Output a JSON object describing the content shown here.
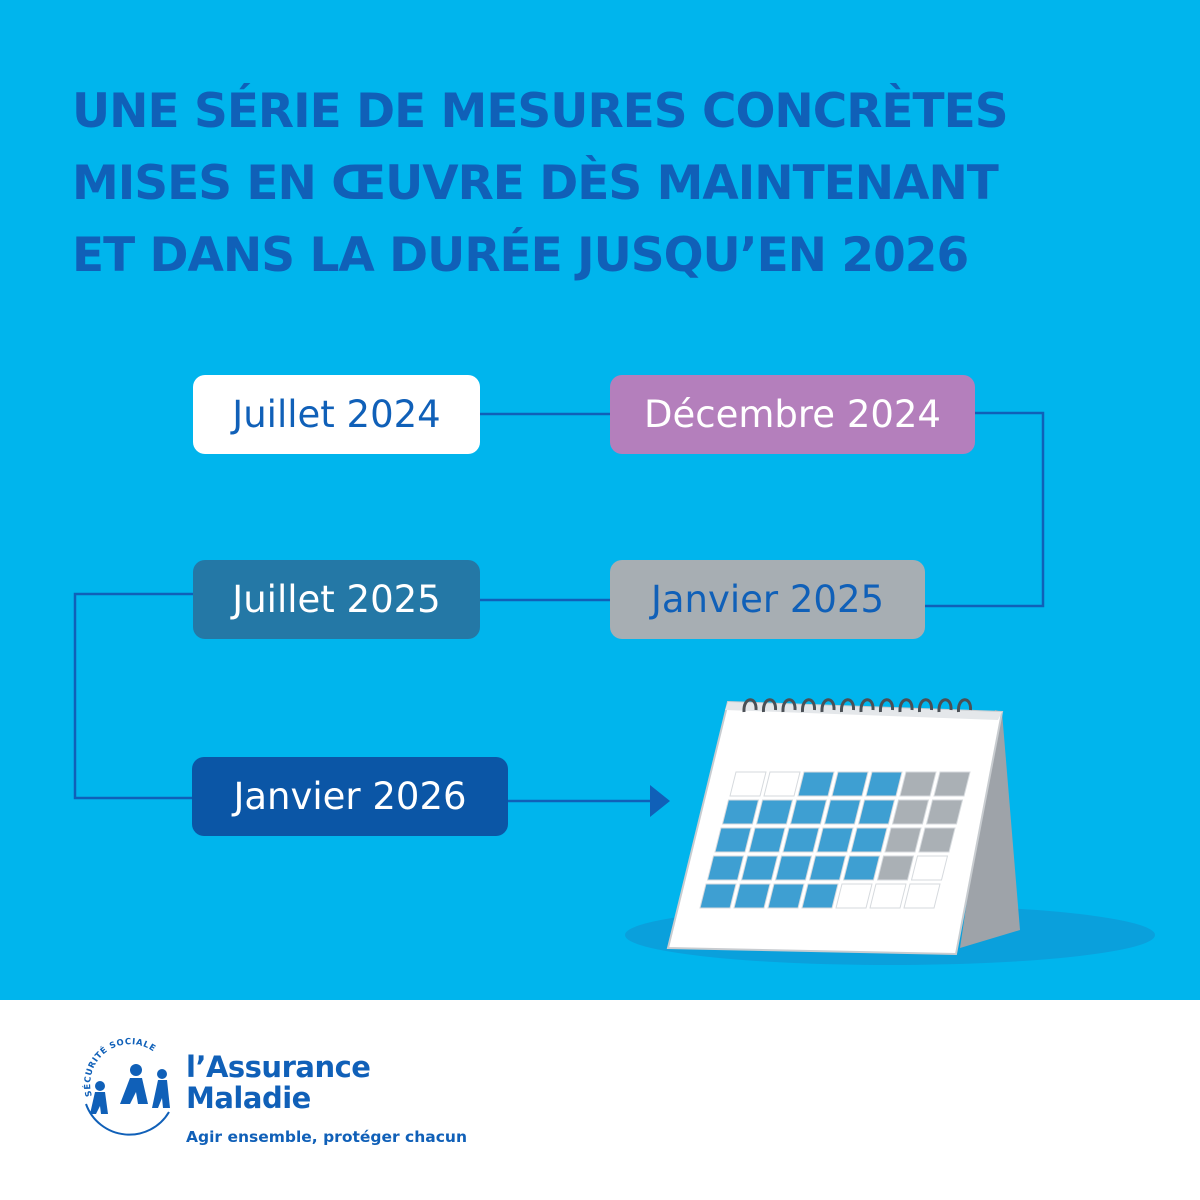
{
  "headline": {
    "lines": [
      "UNE SÉRIE DE MESURES CONCRÈTES",
      "MISES EN ŒUVRE DÈS MAINTENANT",
      "ET DANS LA DURÉE JUSQU’EN 2026"
    ]
  },
  "timeline": [
    {
      "label": "Juillet 2024",
      "bg": "#ffffff",
      "fg": "#1060b8"
    },
    {
      "label": "Décembre 2024",
      "bg": "#b47fbc",
      "fg": "#ffffff"
    },
    {
      "label": "Janvier 2025",
      "bg": "#a7aeb3",
      "fg": "#1060b8"
    },
    {
      "label": "Juillet 2025",
      "bg": "#2478a6",
      "fg": "#ffffff"
    },
    {
      "label": "Janvier 2026",
      "bg": "#0b56a6",
      "fg": "#ffffff"
    }
  ],
  "footer": {
    "logo_line1": "l’Assurance",
    "logo_line2": "Maladie",
    "logo_arc_text": "SÉCURITÉ SOCIALE",
    "tagline": "Agir ensemble, protéger chacun"
  },
  "colors": {
    "background": "#00b5ed",
    "headline": "#1060b8",
    "connector": "#1060b8",
    "footer_bg": "#ffffff"
  },
  "icons": [
    "calendar-icon",
    "assurance-maladie-logo-icon"
  ]
}
